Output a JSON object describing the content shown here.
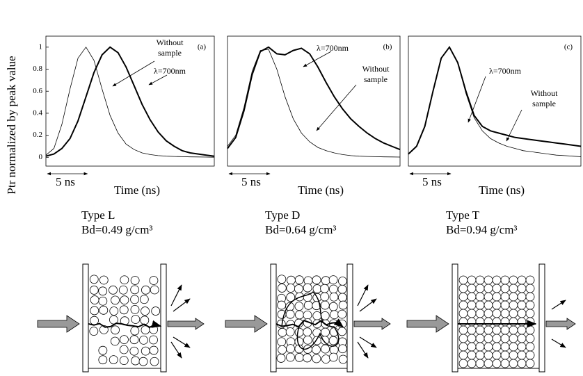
{
  "y_axis_label": "Ptr normalized by peak value",
  "chart_data": [
    {
      "type": "line",
      "panel_label": "(a)",
      "x_axis_label": "Time (ns)",
      "type_label": "Type L",
      "density_label": "Bd=0.49 g/cm³",
      "scale_bar": {
        "value": 5,
        "label": "5 ns"
      },
      "xlim": [
        0,
        21
      ],
      "ylim": [
        -0.08,
        1.1
      ],
      "yticks": [
        0.0,
        0.2,
        0.4,
        0.6,
        0.8,
        1.0
      ],
      "x": [
        0,
        1,
        2,
        3,
        4,
        5,
        6,
        7,
        8,
        9,
        10,
        11,
        12,
        13,
        14,
        15,
        16,
        17,
        18,
        19,
        20,
        21
      ],
      "series": [
        {
          "name": "Without sample",
          "color": "#000000",
          "line_width": 0.8,
          "values": [
            0.02,
            0.08,
            0.3,
            0.62,
            0.9,
            1.0,
            0.88,
            0.62,
            0.38,
            0.22,
            0.12,
            0.07,
            0.04,
            0.025,
            0.015,
            0.01,
            0.008,
            0.006,
            0.004,
            0.003,
            0.002,
            0.001
          ]
        },
        {
          "name": "λ=700nm",
          "color": "#000000",
          "line_width": 2,
          "values": [
            0.01,
            0.03,
            0.08,
            0.17,
            0.33,
            0.55,
            0.77,
            0.93,
            1.0,
            0.95,
            0.82,
            0.65,
            0.48,
            0.34,
            0.23,
            0.15,
            0.1,
            0.06,
            0.04,
            0.03,
            0.02,
            0.01
          ]
        }
      ]
    },
    {
      "type": "line",
      "panel_label": "(b)",
      "x_axis_label": "Time   (ns)",
      "type_label": "Type D",
      "density_label": "Bd=0.64 g/cm³",
      "scale_bar": {
        "value": 5,
        "label": "5 ns"
      },
      "xlim": [
        0,
        21
      ],
      "ylim": [
        -0.08,
        1.1
      ],
      "x": [
        0,
        1,
        2,
        3,
        4,
        5,
        6,
        7,
        8,
        9,
        10,
        11,
        12,
        13,
        14,
        15,
        16,
        17,
        18,
        19,
        20,
        21
      ],
      "series": [
        {
          "name": "Without sample",
          "color": "#000000",
          "line_width": 0.8,
          "values": [
            0.1,
            0.2,
            0.45,
            0.78,
            0.97,
            0.98,
            0.8,
            0.55,
            0.35,
            0.22,
            0.14,
            0.09,
            0.06,
            0.04,
            0.025,
            0.015,
            0.01,
            0.008,
            0.006,
            0.004,
            0.003,
            0.002
          ]
        },
        {
          "name": "λ=700nm",
          "color": "#000000",
          "line_width": 2,
          "values": [
            0.08,
            0.18,
            0.42,
            0.75,
            0.96,
            1.0,
            0.94,
            0.93,
            0.97,
            0.99,
            0.94,
            0.82,
            0.68,
            0.55,
            0.44,
            0.35,
            0.28,
            0.22,
            0.17,
            0.13,
            0.1,
            0.07
          ]
        }
      ]
    },
    {
      "type": "line",
      "panel_label": "(c)",
      "x_axis_label": "Time (ns)",
      "type_label": "Type T",
      "density_label": "Bd=0.94 g/cm³",
      "scale_bar": {
        "value": 5,
        "label": "5 ns"
      },
      "xlim": [
        0,
        21
      ],
      "ylim": [
        -0.08,
        1.1
      ],
      "x": [
        0,
        1,
        2,
        3,
        4,
        5,
        6,
        7,
        8,
        9,
        10,
        11,
        12,
        13,
        14,
        15,
        16,
        17,
        18,
        19,
        20,
        21
      ],
      "series": [
        {
          "name": "Without sample",
          "color": "#000000",
          "line_width": 0.8,
          "values": [
            0.03,
            0.1,
            0.28,
            0.6,
            0.9,
            1.0,
            0.86,
            0.58,
            0.36,
            0.24,
            0.17,
            0.13,
            0.1,
            0.08,
            0.06,
            0.05,
            0.04,
            0.03,
            0.02,
            0.015,
            0.01,
            0.005
          ]
        },
        {
          "name": "λ=700nm",
          "color": "#000000",
          "line_width": 2,
          "values": [
            0.03,
            0.1,
            0.28,
            0.6,
            0.9,
            1.0,
            0.86,
            0.6,
            0.38,
            0.28,
            0.24,
            0.22,
            0.2,
            0.18,
            0.17,
            0.16,
            0.15,
            0.14,
            0.13,
            0.12,
            0.11,
            0.1
          ]
        }
      ]
    }
  ]
}
